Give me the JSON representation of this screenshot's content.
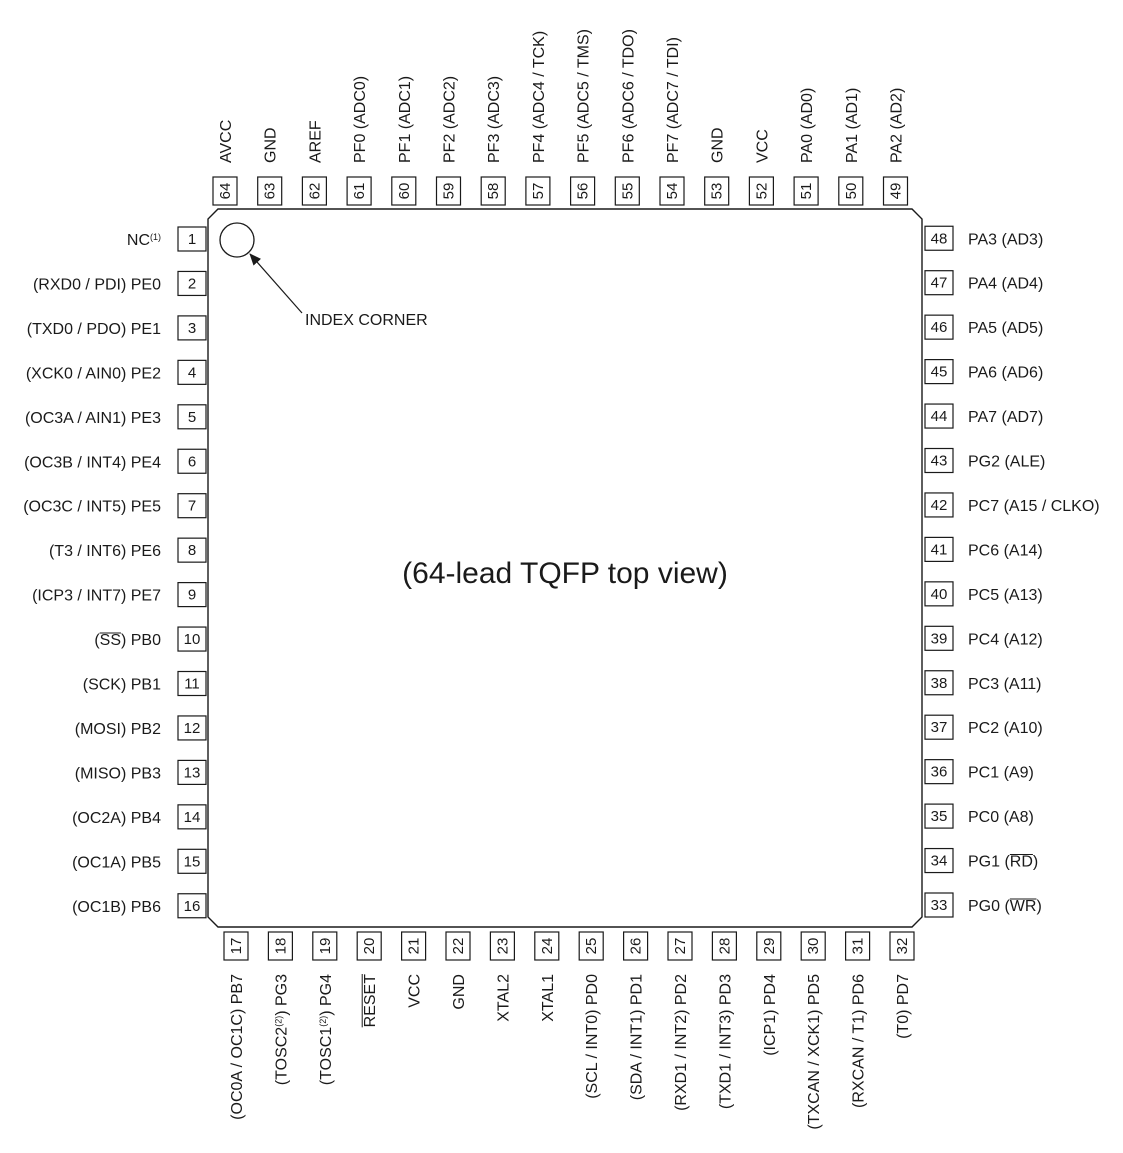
{
  "center_label": "(64-lead TQFP top view)",
  "index_label": "INDEX CORNER",
  "pins": {
    "left": [
      {
        "num": "1",
        "segments": [
          {
            "t": "NC"
          },
          {
            "t": "(1)",
            "sup": true
          }
        ]
      },
      {
        "num": "2",
        "segments": [
          {
            "t": "(RXD0 / PDI) PE0"
          }
        ]
      },
      {
        "num": "3",
        "segments": [
          {
            "t": "(TXD0 / PDO) PE1"
          }
        ]
      },
      {
        "num": "4",
        "segments": [
          {
            "t": "(XCK0 / AIN0) PE2"
          }
        ]
      },
      {
        "num": "5",
        "segments": [
          {
            "t": "(OC3A / AIN1) PE3"
          }
        ]
      },
      {
        "num": "6",
        "segments": [
          {
            "t": "(OC3B / INT4) PE4"
          }
        ]
      },
      {
        "num": "7",
        "segments": [
          {
            "t": "(OC3C / INT5) PE5"
          }
        ]
      },
      {
        "num": "8",
        "segments": [
          {
            "t": "(T3 / INT6) PE6"
          }
        ]
      },
      {
        "num": "9",
        "segments": [
          {
            "t": "(ICP3 / INT7) PE7"
          }
        ]
      },
      {
        "num": "10",
        "segments": [
          {
            "t": "("
          },
          {
            "t": "SS",
            "ovl": true
          },
          {
            "t": ") PB0"
          }
        ]
      },
      {
        "num": "11",
        "segments": [
          {
            "t": "(SCK) PB1"
          }
        ]
      },
      {
        "num": "12",
        "segments": [
          {
            "t": "(MOSI) PB2"
          }
        ]
      },
      {
        "num": "13",
        "segments": [
          {
            "t": "(MISO) PB3"
          }
        ]
      },
      {
        "num": "14",
        "segments": [
          {
            "t": "(OC2A) PB4"
          }
        ]
      },
      {
        "num": "15",
        "segments": [
          {
            "t": "(OC1A) PB5"
          }
        ]
      },
      {
        "num": "16",
        "segments": [
          {
            "t": "(OC1B) PB6"
          }
        ]
      }
    ],
    "bottom": [
      {
        "num": "17",
        "segments": [
          {
            "t": "(OC0A / OC1C) PB7"
          }
        ]
      },
      {
        "num": "18",
        "segments": [
          {
            "t": "(TOSC2"
          },
          {
            "t": "(2)",
            "sup": true
          },
          {
            "t": ") PG3"
          }
        ]
      },
      {
        "num": "19",
        "segments": [
          {
            "t": "(TOSC1"
          },
          {
            "t": "(2)",
            "sup": true
          },
          {
            "t": ") PG4"
          }
        ]
      },
      {
        "num": "20",
        "segments": [
          {
            "t": "RESET",
            "ovl": true
          }
        ]
      },
      {
        "num": "21",
        "segments": [
          {
            "t": "VCC"
          }
        ]
      },
      {
        "num": "22",
        "segments": [
          {
            "t": "GND"
          }
        ]
      },
      {
        "num": "23",
        "segments": [
          {
            "t": "XTAL2"
          }
        ]
      },
      {
        "num": "24",
        "segments": [
          {
            "t": "XTAL1"
          }
        ]
      },
      {
        "num": "25",
        "segments": [
          {
            "t": "(SCL / INT0) PD0"
          }
        ]
      },
      {
        "num": "26",
        "segments": [
          {
            "t": "(SDA / INT1) PD1"
          }
        ]
      },
      {
        "num": "27",
        "segments": [
          {
            "t": "(RXD1 / INT2) PD2"
          }
        ]
      },
      {
        "num": "28",
        "segments": [
          {
            "t": "(TXD1 / INT3) PD3"
          }
        ]
      },
      {
        "num": "29",
        "segments": [
          {
            "t": "(ICP1) PD4"
          }
        ]
      },
      {
        "num": "30",
        "segments": [
          {
            "t": "(TXCAN / XCK1) PD5"
          }
        ]
      },
      {
        "num": "31",
        "segments": [
          {
            "t": "(RXCAN / T1) PD6"
          }
        ]
      },
      {
        "num": "32",
        "segments": [
          {
            "t": "(T0) PD7"
          }
        ]
      }
    ],
    "right": [
      {
        "num": "33",
        "segments": [
          {
            "t": "PG0 ("
          },
          {
            "t": "WR",
            "ovl": true
          },
          {
            "t": ")"
          }
        ]
      },
      {
        "num": "34",
        "segments": [
          {
            "t": "PG1 ("
          },
          {
            "t": "RD",
            "ovl": true
          },
          {
            "t": ")"
          }
        ]
      },
      {
        "num": "35",
        "segments": [
          {
            "t": "PC0 (A8)"
          }
        ]
      },
      {
        "num": "36",
        "segments": [
          {
            "t": "PC1 (A9)"
          }
        ]
      },
      {
        "num": "37",
        "segments": [
          {
            "t": "PC2 (A10)"
          }
        ]
      },
      {
        "num": "38",
        "segments": [
          {
            "t": "PC3 (A11)"
          }
        ]
      },
      {
        "num": "39",
        "segments": [
          {
            "t": "PC4 (A12)"
          }
        ]
      },
      {
        "num": "40",
        "segments": [
          {
            "t": "PC5 (A13)"
          }
        ]
      },
      {
        "num": "41",
        "segments": [
          {
            "t": "PC6 (A14)"
          }
        ]
      },
      {
        "num": "42",
        "segments": [
          {
            "t": "PC7 (A15 / CLKO)"
          }
        ]
      },
      {
        "num": "43",
        "segments": [
          {
            "t": "PG2 (ALE)"
          }
        ]
      },
      {
        "num": "44",
        "segments": [
          {
            "t": "PA7 (AD7)"
          }
        ]
      },
      {
        "num": "45",
        "segments": [
          {
            "t": "PA6 (AD6)"
          }
        ]
      },
      {
        "num": "46",
        "segments": [
          {
            "t": "PA5 (AD5)"
          }
        ]
      },
      {
        "num": "47",
        "segments": [
          {
            "t": "PA4 (AD4)"
          }
        ]
      },
      {
        "num": "48",
        "segments": [
          {
            "t": "PA3 (AD3)"
          }
        ]
      }
    ],
    "top": [
      {
        "num": "49",
        "segments": [
          {
            "t": "PA2 (AD2)"
          }
        ]
      },
      {
        "num": "50",
        "segments": [
          {
            "t": "PA1 (AD1)"
          }
        ]
      },
      {
        "num": "51",
        "segments": [
          {
            "t": "PA0 (AD0)"
          }
        ]
      },
      {
        "num": "52",
        "segments": [
          {
            "t": "VCC"
          }
        ]
      },
      {
        "num": "53",
        "segments": [
          {
            "t": "GND"
          }
        ]
      },
      {
        "num": "54",
        "segments": [
          {
            "t": "PF7 (ADC7 / TDI)"
          }
        ]
      },
      {
        "num": "55",
        "segments": [
          {
            "t": "PF6 (ADC6 / TDO)"
          }
        ]
      },
      {
        "num": "56",
        "segments": [
          {
            "t": "PF5 (ADC5 / TMS)"
          }
        ]
      },
      {
        "num": "57",
        "segments": [
          {
            "t": "PF4 (ADC4 / TCK)"
          }
        ]
      },
      {
        "num": "58",
        "segments": [
          {
            "t": "PF3 (ADC3)"
          }
        ]
      },
      {
        "num": "59",
        "segments": [
          {
            "t": "PF2 (ADC2)"
          }
        ]
      },
      {
        "num": "60",
        "segments": [
          {
            "t": "PF1 (ADC1)"
          }
        ]
      },
      {
        "num": "61",
        "segments": [
          {
            "t": "PF0 (ADC0)"
          }
        ]
      },
      {
        "num": "62",
        "segments": [
          {
            "t": "AREF"
          }
        ]
      },
      {
        "num": "63",
        "segments": [
          {
            "t": "GND"
          }
        ]
      },
      {
        "num": "64",
        "segments": [
          {
            "t": "AVCC"
          }
        ]
      }
    ]
  }
}
